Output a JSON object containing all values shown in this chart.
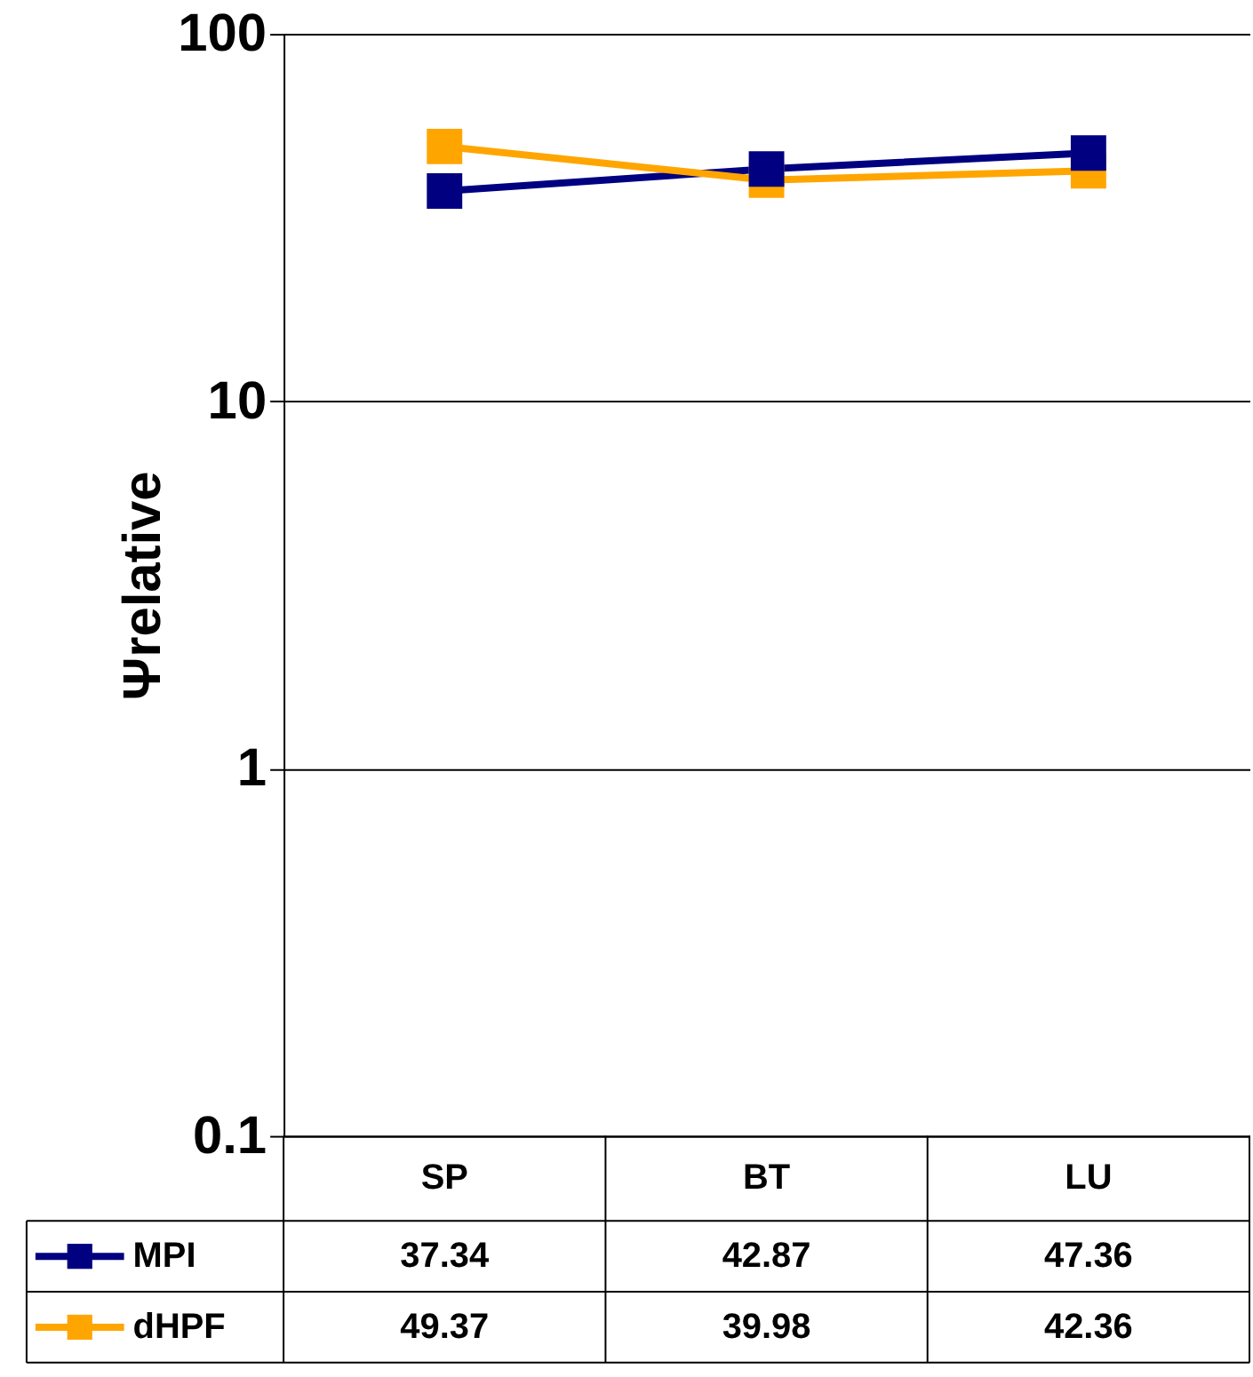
{
  "chart_data": {
    "type": "line",
    "ylabel": "Ψrelative",
    "categories": [
      "SP",
      "BT",
      "LU"
    ],
    "series": [
      {
        "name": "MPI",
        "color": "#000080",
        "values": [
          37.34,
          42.87,
          47.36
        ]
      },
      {
        "name": "dHPF",
        "color": "#ffa500",
        "values": [
          49.37,
          39.98,
          42.36
        ]
      }
    ],
    "log": "y",
    "ylim": [
      0.1,
      100
    ],
    "yticks": [
      0.1,
      1,
      10,
      100
    ],
    "grid": "y",
    "legend": "bottom",
    "marker": "square",
    "line_style": "solid",
    "data_labels": true
  }
}
